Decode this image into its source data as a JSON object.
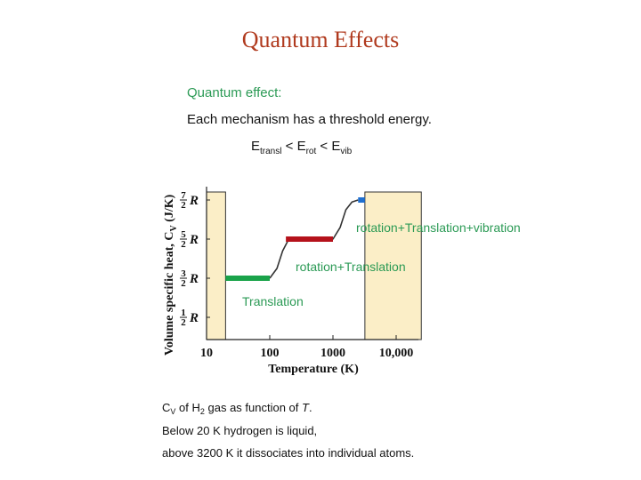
{
  "title": "Quantum Effects",
  "intro": {
    "line1": "Quantum effect:",
    "line2": "Each mechanism has a threshold energy.",
    "energy_order": {
      "e1": "E",
      "e1_sub": "transl",
      "sep1": " < ",
      "e2": "E",
      "e2_sub": "rot",
      "sep2": " < ",
      "e3": "E",
      "e3_sub": "vib"
    }
  },
  "chart_data": {
    "type": "line",
    "xlabel": "Temperature (K)",
    "ylabel": "Volume specific heat, C",
    "ylabel_sub": "V",
    "ylabel_unit": " (J/K)",
    "x_scale": "log",
    "x_ticks": [
      "10",
      "100",
      "1000",
      "10,000"
    ],
    "x_tick_values": [
      10,
      100,
      1000,
      10000
    ],
    "y_ticks": [
      {
        "num": "1",
        "den": "2",
        "sym": "R",
        "value": 0.5
      },
      {
        "num": "3",
        "den": "2",
        "sym": "R",
        "value": 1.5
      },
      {
        "num": "5",
        "den": "2",
        "sym": "R",
        "value": 2.5
      },
      {
        "num": "7",
        "den": "2",
        "sym": "R",
        "value": 3.5
      }
    ],
    "plateaus": [
      {
        "label": "Translation",
        "value": 1.5,
        "x_start": 20,
        "x_end": 100,
        "color": "#1aa34a"
      },
      {
        "label": "rotation+Translation",
        "value": 2.5,
        "x_start": 180,
        "x_end": 1000,
        "color": "#b5121b"
      },
      {
        "label": "rotation+Translation+vibration",
        "value": 3.5,
        "x_start": 2500,
        "x_end": 3200,
        "color": "#1f6fd0"
      }
    ],
    "curve": [
      {
        "x": 100,
        "y": 1.5
      },
      {
        "x": 130,
        "y": 1.75
      },
      {
        "x": 160,
        "y": 2.2
      },
      {
        "x": 200,
        "y": 2.5
      },
      {
        "x": 1000,
        "y": 2.5
      },
      {
        "x": 1300,
        "y": 2.8
      },
      {
        "x": 1600,
        "y": 3.25
      },
      {
        "x": 2000,
        "y": 3.45
      },
      {
        "x": 2500,
        "y": 3.5
      }
    ],
    "shaded_regions": [
      {
        "x_start": 10,
        "x_end": 20,
        "color": "#fbeec7"
      },
      {
        "x_start": 3200,
        "x_end": 25000,
        "color": "#fbeec7"
      }
    ],
    "annotations": [
      {
        "text": "rotation+Translation+vibration",
        "color": "#2b9a55"
      },
      {
        "text": "rotation+Translation",
        "color": "#2b9a55"
      },
      {
        "text": "Translation",
        "color": "#2b9a55"
      }
    ]
  },
  "caption": {
    "line1_pre": "C",
    "line1_sub": "V",
    "line1_mid": " of H",
    "line1_sub2": "2",
    "line1_post": " gas as function of ",
    "line1_T": "T",
    "line1_end": ".",
    "line2": "Below 20 K hydrogen is liquid,",
    "line3": "above 3200 K it dissociates into individual atoms."
  }
}
